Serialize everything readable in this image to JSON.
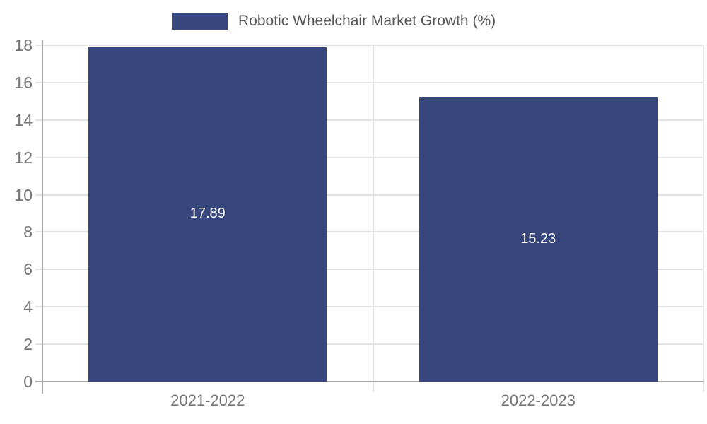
{
  "legend": {
    "label": "Robotic Wheelchair Market Growth (%)"
  },
  "colors": {
    "bar": "#37477D",
    "background": "#ffffff",
    "grid_line": "#e2e2e2",
    "axis_line": "#a8a8a8",
    "tick_label": "#757575",
    "legend_text": "#555555",
    "bar_label": "#ffffff"
  },
  "chart_data": {
    "type": "bar",
    "categories": [
      "2021-2022",
      "2022-2023"
    ],
    "series": [
      {
        "name": "Robotic Wheelchair Market Growth (%)",
        "values": [
          17.89,
          15.23
        ]
      }
    ],
    "data_labels": [
      "17.89",
      "15.23"
    ],
    "title": "",
    "xlabel": "",
    "ylabel": "",
    "ylim": [
      0,
      18
    ],
    "yticks": [
      0,
      2,
      4,
      6,
      8,
      10,
      12,
      14,
      16,
      18
    ],
    "grid": true,
    "legend_position": "top",
    "label_position": "inside-center"
  }
}
